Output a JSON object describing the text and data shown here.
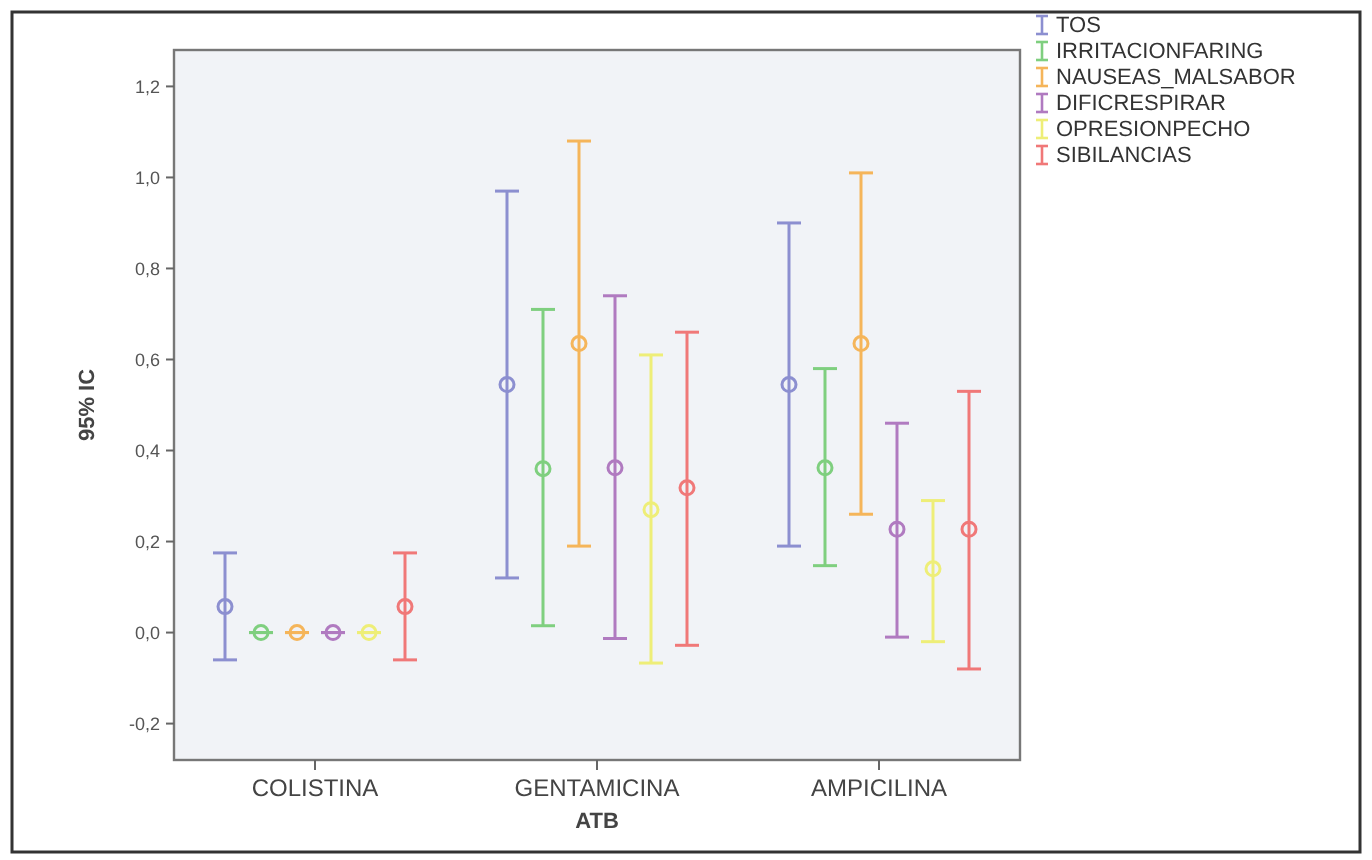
{
  "chart_data": {
    "type": "scatter",
    "xlabel": "ATB",
    "ylabel": "95% IC",
    "categories": [
      "COLISTINA",
      "GENTAMICINA",
      "AMPICILINA"
    ],
    "ylim": [
      -0.28,
      1.28
    ],
    "yticks": [
      {
        "value": -0.2,
        "label": "-0,2"
      },
      {
        "value": 0,
        "label": "0,0"
      },
      {
        "value": 0.2,
        "label": "0,2"
      },
      {
        "value": 0.4,
        "label": "0,4"
      },
      {
        "value": 0.6,
        "label": "0,6"
      },
      {
        "value": 0.8,
        "label": "0,8"
      },
      {
        "value": 1.0,
        "label": "1,0"
      },
      {
        "value": 1.2,
        "label": "1,2"
      }
    ],
    "grid": false,
    "legend": "top right",
    "marker": "circle",
    "series": [
      {
        "name": "TOS",
        "color": "#8c8fd0",
        "values": [
          0.057,
          0.545,
          0.545
        ],
        "errors": [
          [
            -0.06,
            0.175
          ],
          [
            0.12,
            0.97
          ],
          [
            0.19,
            0.9
          ]
        ]
      },
      {
        "name": "IRRITACIONFARING",
        "color": "#7fcf7f",
        "values": [
          0,
          0.36,
          0.362
        ],
        "errors": [
          [
            0,
            0
          ],
          [
            0.015,
            0.71
          ],
          [
            0.147,
            0.58
          ]
        ]
      },
      {
        "name": "NAUSEAS_MALSABOR",
        "color": "#f5b55a",
        "values": [
          0,
          0.635,
          0.635
        ],
        "errors": [
          [
            0,
            0
          ],
          [
            0.19,
            1.08
          ],
          [
            0.26,
            1.01
          ]
        ]
      },
      {
        "name": "DIFICRESPIRAR",
        "color": "#b07ac0",
        "values": [
          0,
          0.362,
          0.227
        ],
        "errors": [
          [
            0,
            0
          ],
          [
            -0.013,
            0.74
          ],
          [
            -0.01,
            0.46
          ]
        ]
      },
      {
        "name": "OPRESIONPECHO",
        "color": "#eeee78",
        "values": [
          0,
          0.27,
          0.14
        ],
        "errors": [
          [
            0,
            0
          ],
          [
            -0.067,
            0.61
          ],
          [
            -0.02,
            0.29
          ]
        ]
      },
      {
        "name": "SIBILANCIAS",
        "color": "#f07878",
        "values": [
          0.057,
          0.318,
          0.227
        ],
        "errors": [
          [
            -0.06,
            0.175
          ],
          [
            -0.028,
            0.66
          ],
          [
            -0.08,
            0.53
          ]
        ]
      }
    ]
  }
}
